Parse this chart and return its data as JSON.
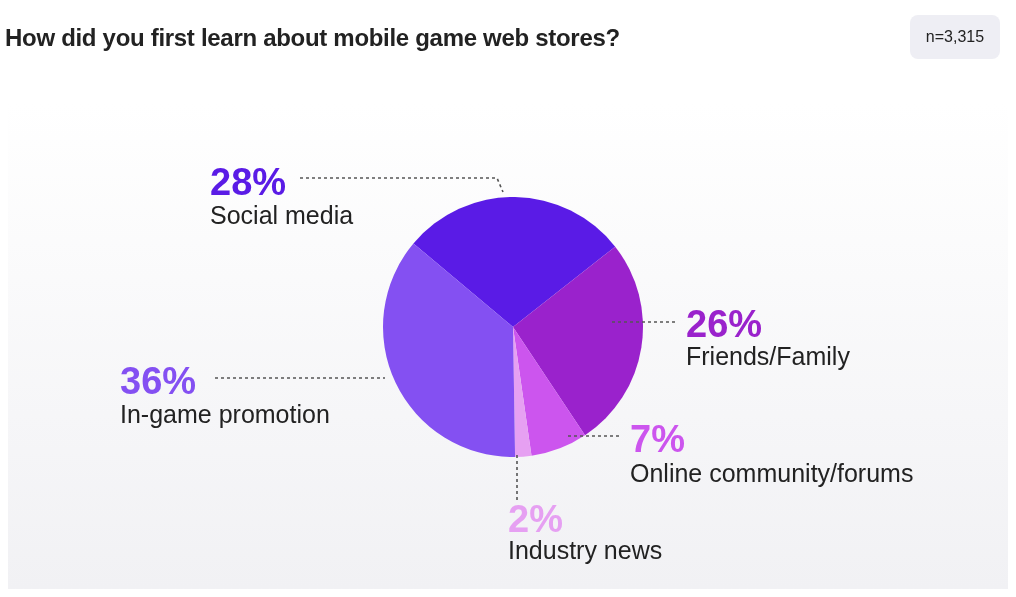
{
  "chart_data": {
    "type": "pie",
    "title": "How did you first learn about mobile game web stores?",
    "categories": [
      "Social media",
      "Friends/Family",
      "Online community/forums",
      "Industry news",
      "In-game promotion"
    ],
    "values": [
      28,
      26,
      7,
      2,
      36
    ],
    "colors": [
      "#5a1be6",
      "#9a22cc",
      "#cc55ee",
      "#e6a0f2",
      "#8450f2"
    ],
    "value_labels": [
      "28%",
      "26%",
      "7%",
      "2%",
      "36%"
    ],
    "annotations": [
      "n=3,315"
    ],
    "legend": false
  }
}
